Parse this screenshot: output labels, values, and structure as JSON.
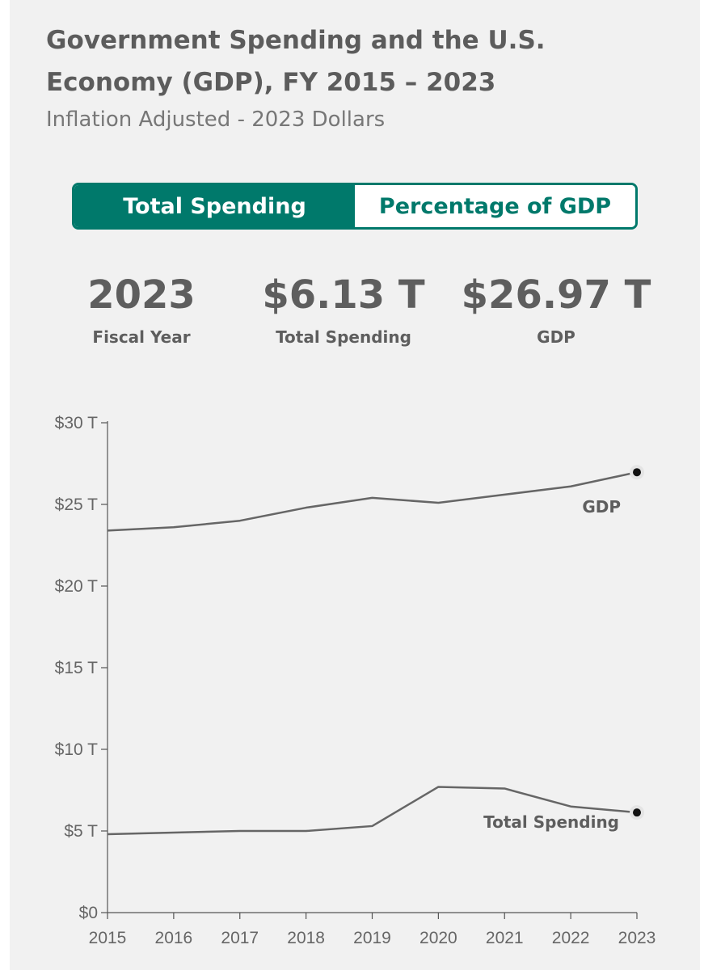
{
  "header": {
    "title": "Government Spending and the U.S. Economy (GDP), FY 2015 – 2023",
    "subtitle": "Inflation Adjusted - 2023 Dollars"
  },
  "toggle": {
    "options": [
      {
        "label": "Total Spending",
        "active": true
      },
      {
        "label": "Percentage of GDP",
        "active": false
      }
    ]
  },
  "stats": {
    "fiscal_year": {
      "value": "2023",
      "label": "Fiscal Year"
    },
    "total_spending": {
      "value": "$6.13 T",
      "label": "Total Spending"
    },
    "gdp": {
      "value": "$26.97 T",
      "label": "GDP"
    }
  },
  "colors": {
    "accent": "#00796b",
    "line": "#666666",
    "text": "#5e5e5e",
    "background": "#f1f1f1"
  },
  "chart_data": {
    "type": "line",
    "title": "",
    "xlabel": "",
    "ylabel": "",
    "x": [
      2015,
      2016,
      2017,
      2018,
      2019,
      2020,
      2021,
      2022,
      2023
    ],
    "x_tick_labels": [
      "2015",
      "2016",
      "2017",
      "2018",
      "2019",
      "2020",
      "2021",
      "2022",
      "2023"
    ],
    "ylim": [
      0,
      30
    ],
    "y_ticks": [
      0,
      5,
      10,
      15,
      20,
      25,
      30
    ],
    "y_tick_labels": [
      "$0",
      "$5 T",
      "$10 T",
      "$15 T",
      "$20 T",
      "$25 T",
      "$30 T"
    ],
    "series": [
      {
        "name": "GDP",
        "values": [
          23.4,
          23.6,
          24.0,
          24.8,
          25.4,
          25.1,
          25.6,
          26.1,
          26.97
        ],
        "end_marker": true
      },
      {
        "name": "Total Spending",
        "values": [
          4.8,
          4.9,
          5.0,
          5.0,
          5.3,
          7.7,
          7.6,
          6.5,
          6.13
        ],
        "end_marker": true
      }
    ],
    "grid": false,
    "legend": "inline labels near line ends"
  }
}
